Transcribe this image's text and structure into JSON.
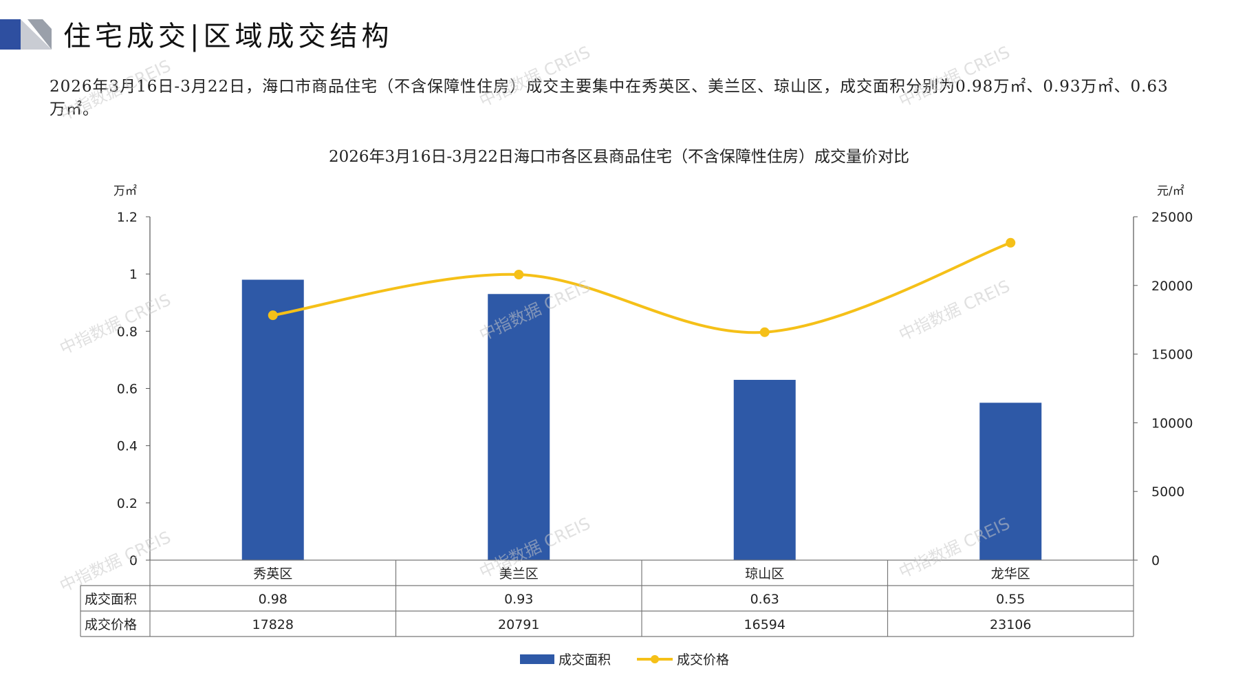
{
  "header": {
    "title": "住宅成交|区域成交结构",
    "summary": "2026年3月16日-3月22日，海口市商品住宅（不含保障性住房）成交主要集中在秀英区、美兰区、琼山区，成交面积分别为0.98万㎡、0.93万㎡、0.63万㎡。"
  },
  "watermark": "中指数据 CREIS",
  "colors": {
    "bar": "#2E59A7",
    "line": "#F5C018",
    "accent": "#2E4FA0"
  },
  "chart_data": {
    "type": "bar",
    "title": "2026年3月16日-3月22日海口市各区县商品住宅（不含保障性住房）成交量价对比",
    "y_left_unit": "万㎡",
    "y_right_unit": "元/㎡",
    "categories": [
      "秀英区",
      "美兰区",
      "琼山区",
      "龙华区"
    ],
    "ylim_left": [
      0,
      1.2
    ],
    "ylim_right": [
      0,
      25000
    ],
    "left_ticks": [
      "1.2",
      "1",
      "0.8",
      "0.6",
      "0.4",
      "0.2",
      "0"
    ],
    "right_ticks": [
      "25000",
      "20000",
      "15000",
      "10000",
      "5000",
      "0"
    ],
    "series": [
      {
        "name": "成交面积",
        "type": "bar",
        "axis": "left",
        "values": [
          0.98,
          0.93,
          0.63,
          0.55
        ],
        "labels": [
          "0.98",
          "0.93",
          "0.63",
          "0.55"
        ]
      },
      {
        "name": "成交价格",
        "type": "line",
        "axis": "right",
        "values": [
          17828,
          20791,
          16594,
          23106
        ],
        "labels": [
          "17828",
          "20791",
          "16594",
          "23106"
        ]
      }
    ],
    "data_table": true,
    "legend": "bottom",
    "grid": false
  }
}
